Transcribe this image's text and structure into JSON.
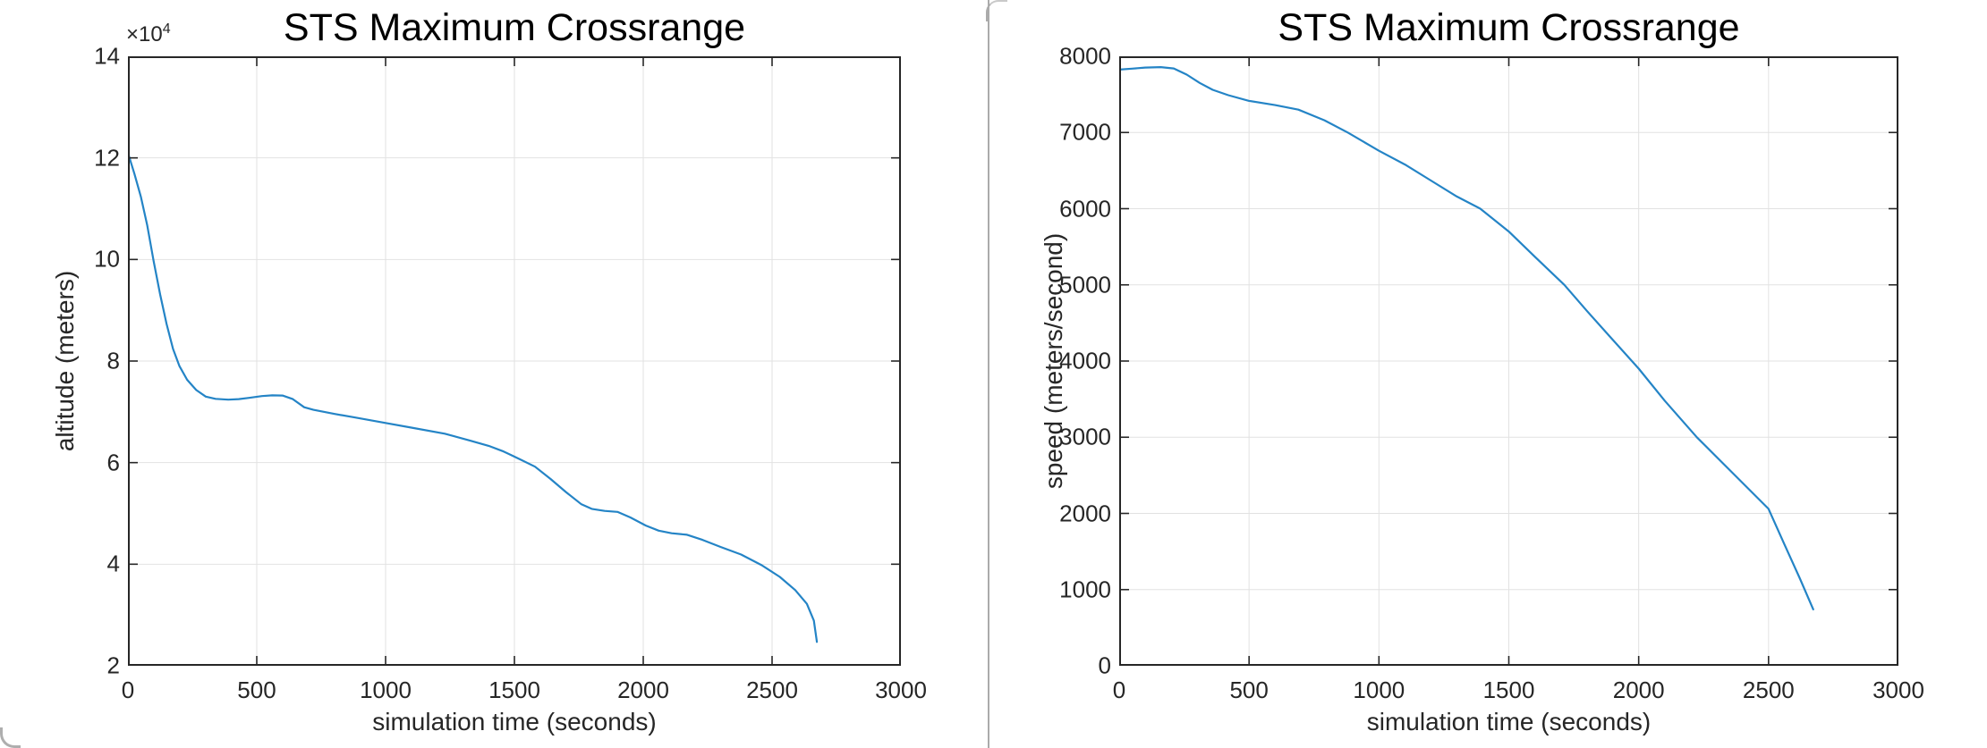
{
  "window": {
    "divider_color": "#ababab",
    "shadow_color": "rgba(90,90,90,0.13)",
    "background": "#ffffff"
  },
  "chart_data": [
    {
      "type": "line",
      "title": "STS Maximum Crossrange",
      "xlabel": "simulation time (seconds)",
      "ylabel": "altitude (meters)",
      "exponent_base": "×10",
      "exponent_sup": "4",
      "xlim": [
        0,
        3000
      ],
      "ylim": [
        20000,
        140000
      ],
      "xticks": [
        0,
        500,
        1000,
        1500,
        2000,
        2500,
        3000
      ],
      "xtick_labels": [
        "0",
        "500",
        "1000",
        "1500",
        "2000",
        "2500",
        "3000"
      ],
      "yticks": [
        20000,
        40000,
        60000,
        80000,
        100000,
        120000,
        140000
      ],
      "ytick_labels": [
        "2",
        "4",
        "6",
        "8",
        "10",
        "12",
        "14"
      ],
      "grid": "on",
      "legend": "none",
      "line_color": "#2484c6",
      "grid_color": "#e2e2e2",
      "axis_color": "#262626",
      "points": [
        [
          0,
          121000
        ],
        [
          25,
          116900
        ],
        [
          50,
          112400
        ],
        [
          75,
          106700
        ],
        [
          100,
          99600
        ],
        [
          125,
          93100
        ],
        [
          150,
          87300
        ],
        [
          175,
          82400
        ],
        [
          200,
          79000
        ],
        [
          230,
          76300
        ],
        [
          265,
          74300
        ],
        [
          302,
          73000
        ],
        [
          340,
          72550
        ],
        [
          390,
          72400
        ],
        [
          430,
          72500
        ],
        [
          470,
          72750
        ],
        [
          520,
          73100
        ],
        [
          560,
          73250
        ],
        [
          600,
          73200
        ],
        [
          640,
          72500
        ],
        [
          684,
          70900
        ],
        [
          720,
          70400
        ],
        [
          800,
          69600
        ],
        [
          880,
          68900
        ],
        [
          1000,
          67800
        ],
        [
          1100,
          66900
        ],
        [
          1230,
          65700
        ],
        [
          1330,
          64300
        ],
        [
          1400,
          63300
        ],
        [
          1458,
          62200
        ],
        [
          1520,
          60700
        ],
        [
          1580,
          59200
        ],
        [
          1640,
          56800
        ],
        [
          1700,
          54200
        ],
        [
          1760,
          51800
        ],
        [
          1800,
          50900
        ],
        [
          1850,
          50500
        ],
        [
          1900,
          50300
        ],
        [
          1950,
          49200
        ],
        [
          2010,
          47600
        ],
        [
          2060,
          46600
        ],
        [
          2110,
          46100
        ],
        [
          2170,
          45800
        ],
        [
          2230,
          44800
        ],
        [
          2300,
          43400
        ],
        [
          2380,
          41900
        ],
        [
          2460,
          39800
        ],
        [
          2530,
          37500
        ],
        [
          2590,
          34900
        ],
        [
          2635,
          32200
        ],
        [
          2662,
          28900
        ],
        [
          2674,
          24700
        ]
      ]
    },
    {
      "type": "line",
      "title": "STS Maximum Crossrange",
      "xlabel": "simulation time (seconds)",
      "ylabel": "speed (meters/second)",
      "xlim": [
        0,
        3000
      ],
      "ylim": [
        0,
        8000
      ],
      "xticks": [
        0,
        500,
        1000,
        1500,
        2000,
        2500,
        3000
      ],
      "xtick_labels": [
        "0",
        "500",
        "1000",
        "1500",
        "2000",
        "2500",
        "3000"
      ],
      "yticks": [
        0,
        1000,
        2000,
        3000,
        4000,
        5000,
        6000,
        7000,
        8000
      ],
      "ytick_labels": [
        "0",
        "1000",
        "2000",
        "3000",
        "4000",
        "5000",
        "6000",
        "7000",
        "8000"
      ],
      "grid": "on",
      "legend": "none",
      "line_color": "#2484c6",
      "grid_color": "#e2e2e2",
      "axis_color": "#262626",
      "points": [
        [
          0,
          7825
        ],
        [
          50,
          7838
        ],
        [
          100,
          7852
        ],
        [
          160,
          7858
        ],
        [
          210,
          7840
        ],
        [
          260,
          7760
        ],
        [
          310,
          7650
        ],
        [
          360,
          7560
        ],
        [
          420,
          7490
        ],
        [
          500,
          7415
        ],
        [
          600,
          7360
        ],
        [
          690,
          7300
        ],
        [
          790,
          7160
        ],
        [
          880,
          7000
        ],
        [
          1000,
          6760
        ],
        [
          1100,
          6580
        ],
        [
          1200,
          6370
        ],
        [
          1300,
          6160
        ],
        [
          1390,
          6000
        ],
        [
          1500,
          5700
        ],
        [
          1600,
          5370
        ],
        [
          1714,
          5000
        ],
        [
          1800,
          4660
        ],
        [
          1900,
          4280
        ],
        [
          2000,
          3900
        ],
        [
          2100,
          3480
        ],
        [
          2224,
          3000
        ],
        [
          2350,
          2570
        ],
        [
          2500,
          2060
        ],
        [
          2560,
          1600
        ],
        [
          2620,
          1150
        ],
        [
          2672,
          740
        ]
      ]
    }
  ]
}
